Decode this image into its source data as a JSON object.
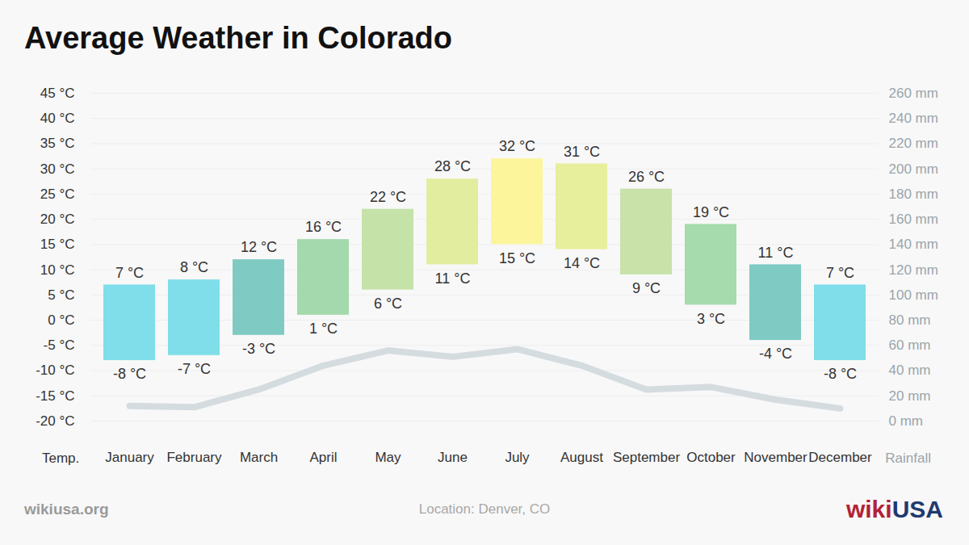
{
  "chart_data": {
    "type": "bar",
    "title": "Average Weather in Colorado",
    "ylabel": "Temp.",
    "y2label": "Rainfall",
    "annotations": {
      "source": "wikiusa.org",
      "location": "Location: Denver, CO",
      "logo": [
        "wiki",
        "USA"
      ]
    },
    "categories": [
      "January",
      "February",
      "March",
      "April",
      "May",
      "June",
      "July",
      "August",
      "September",
      "October",
      "November",
      "December"
    ],
    "series": [
      {
        "type": "bar",
        "low": [
          -8,
          -7,
          -3,
          1,
          6,
          11,
          15,
          14,
          9,
          3,
          -4,
          -8
        ],
        "high": [
          7,
          8,
          12,
          16,
          22,
          28,
          32,
          31,
          26,
          19,
          11,
          7
        ],
        "low_labels": [
          "-8 °C",
          "-7 °C",
          "-3 °C",
          "1 °C",
          "6 °C",
          "11 °C",
          "15 °C",
          "14 °C",
          "9 °C",
          "3 °C",
          "-4 °C",
          "-8 °C"
        ],
        "high_labels": [
          "7 °C",
          "8 °C",
          "12 °C",
          "16 °C",
          "22 °C",
          "28 °C",
          "32 °C",
          "31 °C",
          "26 °C",
          "19 °C",
          "11 °C",
          "7 °C"
        ],
        "colors": [
          "#7fdeea",
          "#7fdeea",
          "#7fcbc4",
          "#a3d9ad",
          "#c5e2a9",
          "#e2eda0",
          "#fdf59c",
          "#e7ee9c",
          "#c8e2a9",
          "#a5dbad",
          "#7fcbc4",
          "#7fdeea"
        ]
      },
      {
        "type": "line",
        "axis": "y2",
        "color": "#d5dce0",
        "values": [
          12,
          11,
          25,
          44,
          56,
          51,
          57,
          44,
          25,
          27,
          17,
          10
        ]
      }
    ],
    "ylim": [
      -20,
      45
    ],
    "yticks": [
      {
        "value": -20,
        "label": "-20 °C"
      },
      {
        "value": -15,
        "label": "-15 °C"
      },
      {
        "value": -10,
        "label": "-10 °C"
      },
      {
        "value": -5,
        "label": "-5 °C"
      },
      {
        "value": 0,
        "label": "0 °C"
      },
      {
        "value": 5,
        "label": "5 °C"
      },
      {
        "value": 10,
        "label": "10 °C"
      },
      {
        "value": 15,
        "label": "15 °C"
      },
      {
        "value": 20,
        "label": "20 °C"
      },
      {
        "value": 25,
        "label": "25 °C"
      },
      {
        "value": 30,
        "label": "30 °C"
      },
      {
        "value": 35,
        "label": "35 °C"
      },
      {
        "value": 40,
        "label": "40 °C"
      },
      {
        "value": 45,
        "label": "45 °C"
      }
    ],
    "y2lim": [
      0,
      260
    ],
    "y2ticks": [
      {
        "value": 0,
        "label": "0 mm"
      },
      {
        "value": 20,
        "label": "20 mm"
      },
      {
        "value": 40,
        "label": "40 mm"
      },
      {
        "value": 60,
        "label": "60 mm"
      },
      {
        "value": 80,
        "label": "80 mm"
      },
      {
        "value": 100,
        "label": "100 mm"
      },
      {
        "value": 120,
        "label": "120 mm"
      },
      {
        "value": 140,
        "label": "140 mm"
      },
      {
        "value": 160,
        "label": "160 mm"
      },
      {
        "value": 180,
        "label": "180 mm"
      },
      {
        "value": 200,
        "label": "200 mm"
      },
      {
        "value": 220,
        "label": "220 mm"
      },
      {
        "value": 240,
        "label": "240 mm"
      },
      {
        "value": 260,
        "label": "260 mm"
      }
    ],
    "grid": true,
    "data_labels": true
  }
}
